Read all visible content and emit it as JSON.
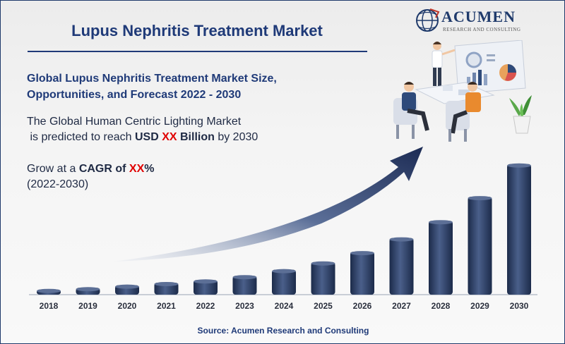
{
  "header": {
    "title": "Lupus Nephritis Treatment Market",
    "subtitle_line1": "Global Lupus Nephritis Treatment Market Size,",
    "subtitle_line2": "Opportunities, and Forecast 2022 - 2030"
  },
  "body": {
    "line1": "The Global Human Centric Lighting Market",
    "line2_prefix": " is predicted to reach ",
    "line2_usd": "USD ",
    "line2_xx": "XX",
    "line2_billion": " Billion",
    "line2_suffix": " by 2030",
    "cagr_prefix": "Grow at a ",
    "cagr_label": "CAGR of ",
    "cagr_xx": "XX",
    "cagr_pct": "%",
    "cagr_years": "(2022-2030)"
  },
  "logo": {
    "name": "ACUMEN",
    "tagline": "RESEARCH AND CONSULTING"
  },
  "footer": {
    "source": "Source: Acumen Research and Consulting"
  },
  "colors": {
    "accent": "#1f3a78",
    "highlight": "#e00000",
    "bar": "#2c3e66"
  },
  "chart_data": {
    "type": "bar",
    "categories": [
      "2018",
      "2019",
      "2020",
      "2021",
      "2022",
      "2023",
      "2024",
      "2025",
      "2026",
      "2027",
      "2028",
      "2029",
      "2030"
    ],
    "values": [
      3,
      4,
      5.5,
      7,
      8.5,
      11,
      14.5,
      19,
      25,
      33,
      43,
      57,
      76
    ],
    "title": "",
    "xlabel": "",
    "ylabel": "",
    "ylim": [
      0,
      80
    ],
    "grid": false,
    "trend_arrow": true
  }
}
